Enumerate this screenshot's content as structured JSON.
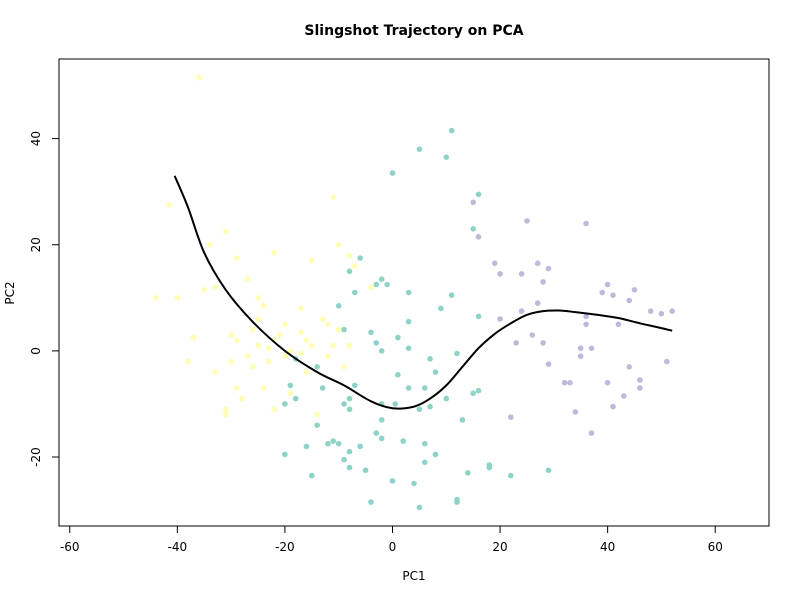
{
  "chart_data": {
    "type": "scatter",
    "title": "Slingshot Trajectory on PCA",
    "xlabel": "PC1",
    "ylabel": "PC2",
    "xlim": [
      -62,
      70
    ],
    "ylim": [
      -33,
      55
    ],
    "xticks": [
      -60,
      -40,
      -20,
      0,
      20,
      40,
      60
    ],
    "yticks": [
      -20,
      0,
      20,
      40
    ],
    "grid": false,
    "legend": "none",
    "series": [
      {
        "color": "#ffffb3",
        "points": [
          [
            -36,
            51.5
          ],
          [
            -41.5,
            27.5
          ],
          [
            -34,
            20
          ],
          [
            -31,
            22.5
          ],
          [
            -33,
            12
          ],
          [
            -29,
            17.5
          ],
          [
            -27,
            13.5
          ],
          [
            -25,
            10
          ],
          [
            -22,
            18.5
          ],
          [
            -44,
            10
          ],
          [
            -40,
            10
          ],
          [
            -35,
            11.5
          ],
          [
            -37,
            2.5
          ],
          [
            -30,
            3
          ],
          [
            -29,
            2
          ],
          [
            -25,
            6
          ],
          [
            -24,
            8.5
          ],
          [
            -20,
            5
          ],
          [
            -17,
            3.5
          ],
          [
            -17,
            8
          ],
          [
            -16,
            2
          ],
          [
            -15,
            1
          ],
          [
            -13,
            6
          ],
          [
            -12,
            5
          ],
          [
            -11,
            1
          ],
          [
            -10,
            4
          ],
          [
            -8,
            1
          ],
          [
            -38,
            -2
          ],
          [
            -33,
            -4
          ],
          [
            -30,
            -2
          ],
          [
            -27,
            -1
          ],
          [
            -25,
            1
          ],
          [
            -23,
            0.5
          ],
          [
            -22,
            2
          ],
          [
            -21,
            3
          ],
          [
            -26,
            -3
          ],
          [
            -29,
            -7
          ],
          [
            -28,
            -9
          ],
          [
            -24,
            -7
          ],
          [
            -22,
            -11
          ],
          [
            -19,
            -8
          ],
          [
            -31,
            -11
          ],
          [
            -31,
            -12
          ],
          [
            -16,
            -4
          ],
          [
            -14,
            -12
          ],
          [
            -11,
            29
          ],
          [
            -15,
            17
          ],
          [
            -10,
            20
          ],
          [
            -8,
            18
          ],
          [
            -7,
            16
          ],
          [
            -4,
            12
          ],
          [
            -12,
            -1
          ],
          [
            -9,
            -3
          ],
          [
            -17,
            -0.5
          ],
          [
            -19,
            0
          ],
          [
            -23,
            -2
          ],
          [
            -26,
            4
          ],
          [
            -20,
            -1
          ]
        ]
      },
      {
        "color": "#8dd3c7",
        "points": [
          [
            11,
            41.5
          ],
          [
            5,
            38
          ],
          [
            10,
            36.5
          ],
          [
            0,
            33.5
          ],
          [
            16,
            29.5
          ],
          [
            15,
            23
          ],
          [
            -6,
            17.5
          ],
          [
            -8,
            15
          ],
          [
            -7,
            11
          ],
          [
            -3,
            12.5
          ],
          [
            -2,
            13.5
          ],
          [
            -1,
            12.5
          ],
          [
            3,
            11
          ],
          [
            11,
            10.5
          ],
          [
            -10,
            8.5
          ],
          [
            -9,
            4
          ],
          [
            -4,
            3.5
          ],
          [
            -3,
            1.5
          ],
          [
            1,
            2.5
          ],
          [
            3,
            5.5
          ],
          [
            9,
            8
          ],
          [
            16,
            6.5
          ],
          [
            -2,
            0
          ],
          [
            3,
            0.5
          ],
          [
            7,
            -1.5
          ],
          [
            12,
            -0.5
          ],
          [
            -18,
            -1.5
          ],
          [
            -14,
            -3
          ],
          [
            -13,
            -7
          ],
          [
            -7,
            -6.5
          ],
          [
            -8,
            -9
          ],
          [
            -9,
            -10
          ],
          [
            -8,
            -11
          ],
          [
            -2,
            -13
          ],
          [
            1,
            -4.5
          ],
          [
            3,
            -7
          ],
          [
            6,
            -7
          ],
          [
            8,
            -4
          ],
          [
            10,
            -9
          ],
          [
            5,
            -11
          ],
          [
            7,
            -10.5
          ],
          [
            13,
            -13
          ],
          [
            15,
            -8
          ],
          [
            16,
            -7.5
          ],
          [
            18,
            -22
          ],
          [
            -19,
            -6.5
          ],
          [
            -20,
            -10
          ],
          [
            -18,
            -9
          ],
          [
            -16,
            -18
          ],
          [
            -14,
            -14
          ],
          [
            -12,
            -17.5
          ],
          [
            -11,
            -17
          ],
          [
            -10,
            -17.5
          ],
          [
            -8,
            -19
          ],
          [
            -8,
            -22
          ],
          [
            -6,
            -18
          ],
          [
            -5,
            -22.5
          ],
          [
            -3,
            -15.5
          ],
          [
            -2,
            -16.5
          ],
          [
            -4,
            -28.5
          ],
          [
            0,
            -24.5
          ],
          [
            2,
            -17
          ],
          [
            4,
            -25
          ],
          [
            6,
            -17.5
          ],
          [
            6,
            -21
          ],
          [
            8,
            -19.5
          ],
          [
            5,
            -29.5
          ],
          [
            12,
            -28
          ],
          [
            12,
            -28.5
          ],
          [
            14,
            -23
          ],
          [
            18,
            -21.5
          ],
          [
            22,
            -23.5
          ],
          [
            29,
            -22.5
          ],
          [
            -20,
            -19.5
          ],
          [
            -9,
            -20.5
          ],
          [
            -15,
            -23.5
          ],
          [
            0.5,
            -10
          ],
          [
            -2,
            -10
          ]
        ]
      },
      {
        "color": "#bebada",
        "points": [
          [
            15,
            28
          ],
          [
            16,
            21.5
          ],
          [
            19,
            16.5
          ],
          [
            20,
            14.5
          ],
          [
            24,
            14.5
          ],
          [
            25,
            24.5
          ],
          [
            27,
            16.5
          ],
          [
            28,
            13
          ],
          [
            29,
            15.5
          ],
          [
            36,
            24
          ],
          [
            39,
            11
          ],
          [
            40,
            12.5
          ],
          [
            41,
            10.5
          ],
          [
            44,
            9.5
          ],
          [
            45,
            11.5
          ],
          [
            48,
            7.5
          ],
          [
            50,
            7
          ],
          [
            52,
            7.5
          ],
          [
            20,
            6
          ],
          [
            24,
            7.5
          ],
          [
            27,
            9
          ],
          [
            28,
            1.5
          ],
          [
            26,
            3
          ],
          [
            23,
            1.5
          ],
          [
            33,
            -6
          ],
          [
            35,
            0.5
          ],
          [
            35,
            -1
          ],
          [
            37,
            0.5
          ],
          [
            36,
            5
          ],
          [
            36,
            6.5
          ],
          [
            40,
            -6
          ],
          [
            41,
            -10.5
          ],
          [
            43,
            -8.5
          ],
          [
            44,
            -3
          ],
          [
            46,
            -5.5
          ],
          [
            46,
            -7
          ],
          [
            51,
            -2
          ],
          [
            34,
            -11.5
          ],
          [
            37,
            -15.5
          ],
          [
            42,
            5
          ],
          [
            29,
            -2.5
          ],
          [
            22,
            -12.5
          ],
          [
            32,
            -6
          ]
        ]
      }
    ],
    "curve": {
      "color": "#000000",
      "points": [
        [
          -40.5,
          33
        ],
        [
          -38,
          27
        ],
        [
          -35,
          18.5
        ],
        [
          -31,
          11.5
        ],
        [
          -26,
          5.5
        ],
        [
          -20,
          0
        ],
        [
          -14,
          -4
        ],
        [
          -9,
          -6.5
        ],
        [
          -4,
          -9.5
        ],
        [
          0,
          -10.8
        ],
        [
          4,
          -10.5
        ],
        [
          7,
          -9
        ],
        [
          10,
          -6.5
        ],
        [
          13,
          -3
        ],
        [
          16,
          0.5
        ],
        [
          19,
          3.2
        ],
        [
          22,
          5.2
        ],
        [
          25,
          6.8
        ],
        [
          28,
          7.5
        ],
        [
          31,
          7.6
        ],
        [
          34,
          7.3
        ],
        [
          38,
          6.8
        ],
        [
          42,
          6.2
        ],
        [
          46,
          5.2
        ],
        [
          50,
          4.3
        ],
        [
          52,
          3.8
        ]
      ]
    }
  }
}
